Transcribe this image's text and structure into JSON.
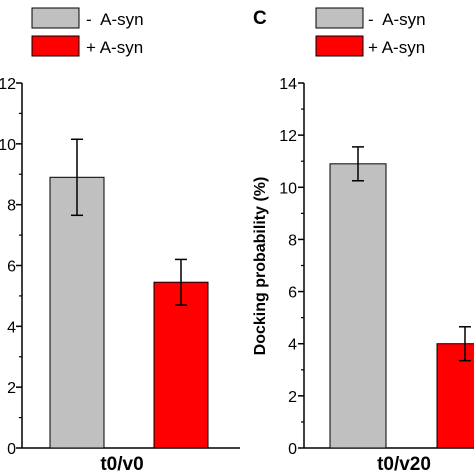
{
  "chart_data": [
    {
      "type": "bar",
      "categories": [
        "t0/v0"
      ],
      "series": [
        {
          "name": "-  A-syn",
          "color": "#c0c0c0",
          "values": [
            8.9
          ],
          "error": [
            1.25
          ]
        },
        {
          "name": "+ A-syn",
          "color": "#ff0000",
          "values": [
            5.45
          ],
          "error": [
            0.75
          ]
        }
      ],
      "ylabel": "",
      "xlabel": "",
      "ylim": [
        0,
        12
      ],
      "yticks": [
        "0",
        "2",
        "4",
        "6",
        "8",
        "10",
        "12"
      ],
      "legend": "top"
    },
    {
      "type": "bar",
      "panel_label": "C",
      "categories": [
        "t0/v20"
      ],
      "series": [
        {
          "name": "-  A-syn",
          "color": "#c0c0c0",
          "values": [
            10.9
          ],
          "error": [
            0.65
          ]
        },
        {
          "name": "+ A-syn",
          "color": "#ff0000",
          "values": [
            4.0
          ],
          "error": [
            0.65
          ]
        }
      ],
      "ylabel": "Docking probability (%)",
      "xlabel": "",
      "ylim": [
        0,
        14
      ],
      "yticks": [
        "0",
        "2",
        "4",
        "6",
        "8",
        "10",
        "12",
        "14"
      ],
      "legend": "top"
    }
  ]
}
